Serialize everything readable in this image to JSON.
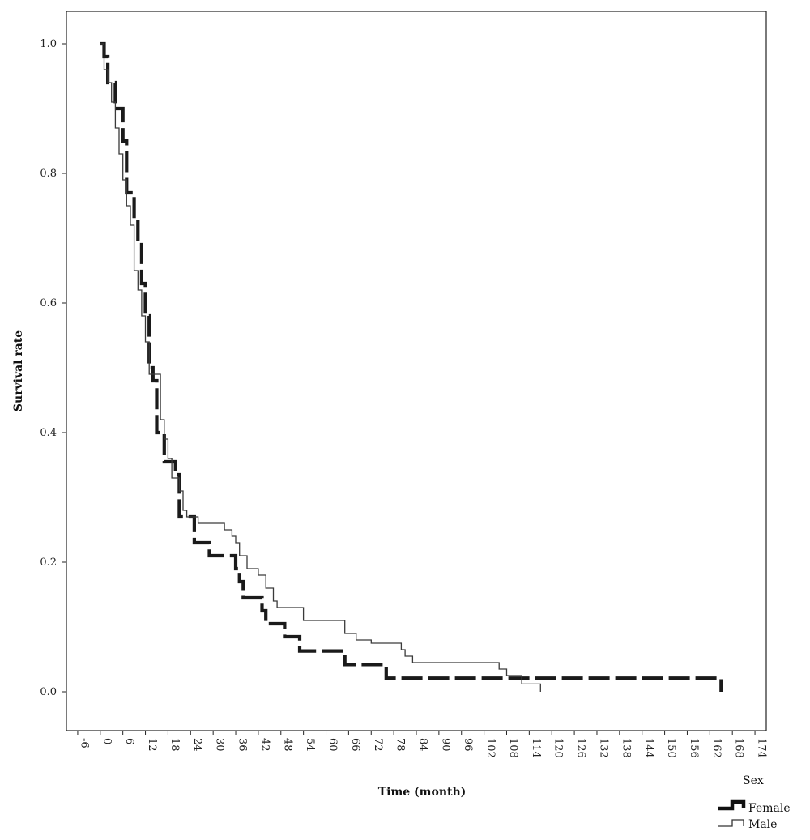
{
  "chart_data": {
    "type": "line",
    "subtype": "kaplan-meier step curve",
    "title": "",
    "xlabel": "Time (month)",
    "ylabel": "Survival rate",
    "xlim": [
      -9,
      177
    ],
    "ylim": [
      -0.06,
      1.05
    ],
    "x_ticks": [
      -6,
      0,
      6,
      12,
      18,
      24,
      30,
      36,
      42,
      48,
      54,
      60,
      66,
      72,
      78,
      84,
      90,
      96,
      102,
      108,
      114,
      120,
      126,
      132,
      138,
      144,
      150,
      156,
      162,
      168,
      174
    ],
    "x_tick_labels": [
      "-6",
      "0",
      "6",
      "12",
      "18",
      "24",
      "30",
      "36",
      "42",
      "48",
      "54",
      "60",
      "66",
      "72",
      "78",
      "84",
      "90",
      "96",
      "102",
      "108",
      "114",
      "120",
      "126",
      "132",
      "138",
      "144",
      "150",
      "156",
      "162",
      "168",
      "174"
    ],
    "y_ticks": [
      0.0,
      0.2,
      0.4,
      0.6,
      0.8,
      1.0
    ],
    "y_tick_labels": [
      "0.0",
      "0.2",
      "0.4",
      "0.6",
      "0.8",
      "1.0"
    ],
    "grid": false,
    "legend": {
      "title": "Sex",
      "position": "bottom-right, outside plot"
    },
    "series": [
      {
        "name": "Female",
        "style": "thick dashed",
        "color": "#1a1a1a",
        "steps": [
          [
            0,
            1.0
          ],
          [
            1,
            0.98
          ],
          [
            2,
            0.94
          ],
          [
            4,
            0.9
          ],
          [
            6,
            0.85
          ],
          [
            7,
            0.77
          ],
          [
            9,
            0.73
          ],
          [
            10,
            0.69
          ],
          [
            11,
            0.63
          ],
          [
            12,
            0.58
          ],
          [
            13,
            0.5
          ],
          [
            14,
            0.48
          ],
          [
            15,
            0.4
          ],
          [
            17,
            0.355
          ],
          [
            20,
            0.335
          ],
          [
            21,
            0.27
          ],
          [
            25,
            0.23
          ],
          [
            29,
            0.21
          ],
          [
            36,
            0.19
          ],
          [
            37,
            0.17
          ],
          [
            38,
            0.145
          ],
          [
            43,
            0.125
          ],
          [
            44,
            0.105
          ],
          [
            49,
            0.085
          ],
          [
            53,
            0.063
          ],
          [
            65,
            0.042
          ],
          [
            76,
            0.021
          ],
          [
            165,
            0.021
          ],
          [
            165,
            0.0
          ]
        ]
      },
      {
        "name": "Male",
        "style": "thin solid",
        "color": "#3a3a3a",
        "steps": [
          [
            0,
            1.0
          ],
          [
            1,
            0.96
          ],
          [
            2,
            0.94
          ],
          [
            3,
            0.91
          ],
          [
            4,
            0.87
          ],
          [
            5,
            0.83
          ],
          [
            6,
            0.79
          ],
          [
            7,
            0.75
          ],
          [
            8,
            0.72
          ],
          [
            9,
            0.65
          ],
          [
            10,
            0.62
          ],
          [
            11,
            0.58
          ],
          [
            12,
            0.54
          ],
          [
            13,
            0.49
          ],
          [
            16,
            0.42
          ],
          [
            17,
            0.39
          ],
          [
            18,
            0.36
          ],
          [
            19,
            0.33
          ],
          [
            21,
            0.31
          ],
          [
            22,
            0.28
          ],
          [
            23,
            0.27
          ],
          [
            26,
            0.26
          ],
          [
            33,
            0.25
          ],
          [
            35,
            0.24
          ],
          [
            36,
            0.23
          ],
          [
            37,
            0.21
          ],
          [
            39,
            0.19
          ],
          [
            42,
            0.18
          ],
          [
            44,
            0.16
          ],
          [
            46,
            0.14
          ],
          [
            47,
            0.13
          ],
          [
            54,
            0.11
          ],
          [
            65,
            0.09
          ],
          [
            68,
            0.08
          ],
          [
            72,
            0.075
          ],
          [
            80,
            0.065
          ],
          [
            81,
            0.055
          ],
          [
            83,
            0.045
          ],
          [
            106,
            0.035
          ],
          [
            108,
            0.025
          ],
          [
            112,
            0.012
          ],
          [
            117,
            0.012
          ],
          [
            117,
            0.0
          ]
        ]
      }
    ]
  }
}
